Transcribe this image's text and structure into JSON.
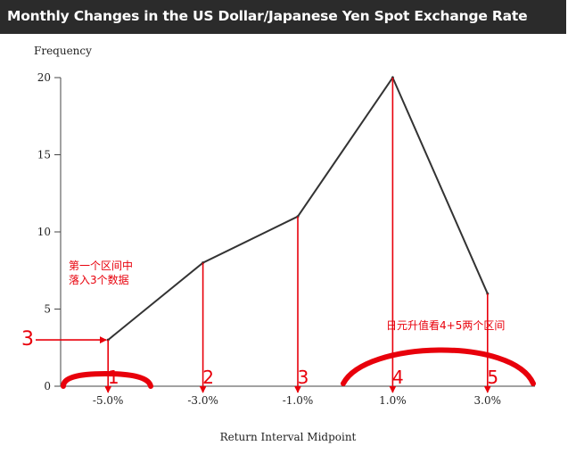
{
  "chart_data": {
    "type": "line",
    "title": "Monthly Changes in the US Dollar/Japanese Yen Spot Exchange Rate",
    "ylabel": "Frequency",
    "xlabel": "Return Interval Midpoint",
    "categories": [
      "-5.0%",
      "-3.0%",
      "-1.0%",
      "1.0%",
      "3.0%"
    ],
    "x": [
      -5,
      -3,
      -1,
      1,
      3
    ],
    "values": [
      3,
      8,
      11,
      20,
      6
    ],
    "xlim": [
      -6,
      4
    ],
    "ylim": [
      0,
      20
    ],
    "yticks": [
      0,
      5,
      10,
      15,
      20
    ],
    "line_color": "#333333",
    "grid": false,
    "annotations": {
      "color": "#e8000b",
      "numbers": [
        "1",
        "2",
        "3",
        "4",
        "5"
      ],
      "left_value": "3",
      "note_first": [
        "第一个区间中",
        "落入3个数据"
      ],
      "note_yen": "日元升值看4+5两个区间"
    }
  }
}
